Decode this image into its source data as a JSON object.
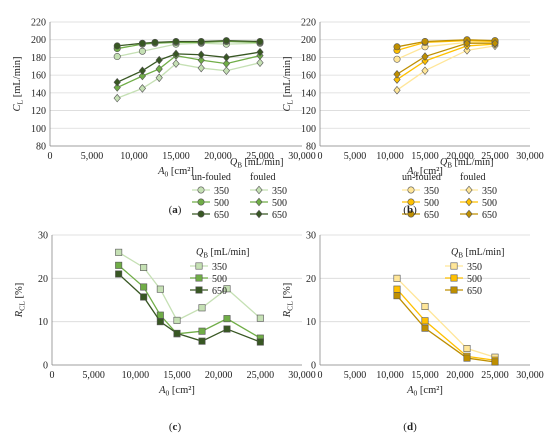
{
  "figure": {
    "background": "#ffffff"
  },
  "chart_data": [
    {
      "panel": "(a)",
      "type": "line",
      "xlabel": "A0 [cm²]",
      "ylabel": "CL [mL/min]",
      "xlim": [
        0,
        30000
      ],
      "ylim": [
        80,
        220
      ],
      "x_ticks": [
        "0",
        "5,000",
        "10,000",
        "15,000",
        "20,000",
        "25,000",
        "30,000"
      ],
      "y_ticks": [
        "80",
        "100",
        "120",
        "140",
        "160",
        "180",
        "200",
        "220"
      ],
      "grid": "horizontal",
      "legend_title": "QB [mL/min]",
      "legend_groups": [
        "un-fouled",
        "fouled"
      ],
      "legend_labels": [
        "350",
        "500",
        "650"
      ],
      "series": [
        {
          "name": "350",
          "group": "un-fouled",
          "marker": "circle",
          "color": "#c5e0b4",
          "x": [
            8000,
            11000,
            15000,
            18000,
            21000,
            25000
          ],
          "y": [
            181,
            187,
            195,
            196,
            195,
            196
          ]
        },
        {
          "name": "500",
          "group": "un-fouled",
          "marker": "circle",
          "color": "#70ad47",
          "x": [
            8000,
            11000,
            12500,
            15000,
            18000,
            21000,
            25000
          ],
          "y": [
            190,
            195,
            196,
            197,
            197,
            198,
            197
          ]
        },
        {
          "name": "650",
          "group": "un-fouled",
          "marker": "circle",
          "color": "#385723",
          "x": [
            8000,
            11000,
            12500,
            15000,
            18000,
            21000,
            25000
          ],
          "y": [
            193,
            196,
            197,
            198,
            198,
            199,
            198
          ]
        },
        {
          "name": "350",
          "group": "fouled",
          "marker": "diamond",
          "color": "#c5e0b4",
          "x": [
            8000,
            11000,
            13000,
            15000,
            18000,
            21000,
            25000
          ],
          "y": [
            134,
            145,
            157,
            173,
            168,
            165,
            174
          ]
        },
        {
          "name": "500",
          "group": "fouled",
          "marker": "diamond",
          "color": "#70ad47",
          "x": [
            8000,
            11000,
            13000,
            15000,
            18000,
            21000,
            25000
          ],
          "y": [
            146,
            159,
            167,
            182,
            177,
            173,
            182
          ]
        },
        {
          "name": "650",
          "group": "fouled",
          "marker": "diamond",
          "color": "#385723",
          "x": [
            8000,
            11000,
            13000,
            15000,
            18000,
            21000,
            25000
          ],
          "y": [
            152,
            165,
            177,
            184,
            183,
            180,
            186
          ]
        }
      ]
    },
    {
      "panel": "(b)",
      "type": "line",
      "xlabel": "A0 [cm²]",
      "ylabel": "CL [mL/min]",
      "xlim": [
        0,
        30000
      ],
      "ylim": [
        80,
        220
      ],
      "x_ticks": [
        "0",
        "5,000",
        "10,000",
        "15,000",
        "20,000",
        "25,000",
        "30,000"
      ],
      "y_ticks": [
        "80",
        "100",
        "120",
        "140",
        "160",
        "180",
        "200",
        "220"
      ],
      "grid": "horizontal",
      "legend_title": "QB [mL/min]",
      "legend_groups": [
        "un-fouled",
        "fouled"
      ],
      "legend_labels": [
        "350",
        "500",
        "650"
      ],
      "series": [
        {
          "name": "350",
          "group": "un-fouled",
          "marker": "circle",
          "color": "#ffe699",
          "x": [
            11000,
            15000,
            21000,
            25000
          ],
          "y": [
            178,
            192,
            197,
            197
          ]
        },
        {
          "name": "500",
          "group": "un-fouled",
          "marker": "circle",
          "color": "#ffc000",
          "x": [
            11000,
            15000,
            21000,
            25000
          ],
          "y": [
            188,
            197,
            199,
            198
          ]
        },
        {
          "name": "650",
          "group": "un-fouled",
          "marker": "circle",
          "color": "#bf8f00",
          "x": [
            11000,
            15000,
            21000,
            25000
          ],
          "y": [
            192,
            198,
            200,
            199
          ]
        },
        {
          "name": "350",
          "group": "fouled",
          "marker": "diamond",
          "color": "#ffe699",
          "x": [
            11000,
            15000,
            21000,
            25000
          ],
          "y": [
            143,
            165,
            188,
            193
          ]
        },
        {
          "name": "500",
          "group": "fouled",
          "marker": "diamond",
          "color": "#ffc000",
          "x": [
            11000,
            15000,
            21000,
            25000
          ],
          "y": [
            155,
            176,
            193,
            195
          ]
        },
        {
          "name": "650",
          "group": "fouled",
          "marker": "diamond",
          "color": "#bf8f00",
          "x": [
            11000,
            15000,
            21000,
            25000
          ],
          "y": [
            161,
            181,
            196,
            196
          ]
        }
      ]
    },
    {
      "panel": "(c)",
      "type": "line",
      "xlabel": "A0 [cm²]",
      "ylabel": "RCL [%]",
      "xlim": [
        0,
        30000
      ],
      "ylim": [
        0,
        30
      ],
      "x_ticks": [
        "0",
        "5,000",
        "10,000",
        "15,000",
        "20,000",
        "25,000",
        "30,000"
      ],
      "y_ticks": [
        "0",
        "10",
        "20",
        "30"
      ],
      "grid": "horizontal",
      "legend_title": "QB [mL/min]",
      "legend_labels": [
        "350",
        "500",
        "650"
      ],
      "series": [
        {
          "name": "350",
          "marker": "square",
          "color": "#c5e0b4",
          "x": [
            8000,
            11000,
            13000,
            15000,
            18000,
            21000,
            25000
          ],
          "y": [
            26,
            22.5,
            17.5,
            10.3,
            13.2,
            17.6,
            10.8
          ]
        },
        {
          "name": "500",
          "marker": "square",
          "color": "#70ad47",
          "x": [
            8000,
            11000,
            13000,
            15000,
            18000,
            21000,
            25000
          ],
          "y": [
            23,
            18,
            11.5,
            7.2,
            7.8,
            10.7,
            6.2
          ]
        },
        {
          "name": "650",
          "marker": "square",
          "color": "#385723",
          "x": [
            8000,
            11000,
            13000,
            15000,
            18000,
            21000,
            25000
          ],
          "y": [
            21,
            15.7,
            10,
            7.3,
            5.5,
            8.3,
            5.3
          ]
        }
      ]
    },
    {
      "panel": "(d)",
      "type": "line",
      "xlabel": "A0 [cm²]",
      "ylabel": "RCL [%]",
      "xlim": [
        0,
        30000
      ],
      "ylim": [
        0,
        30
      ],
      "x_ticks": [
        "0",
        "5,000",
        "10,000",
        "15,000",
        "20,000",
        "25,000",
        "30,000"
      ],
      "y_ticks": [
        "0",
        "10",
        "20",
        "30"
      ],
      "grid": "horizontal",
      "legend_title": "QB [mL/min]",
      "legend_labels": [
        "350",
        "500",
        "650"
      ],
      "series": [
        {
          "name": "350",
          "marker": "square",
          "color": "#ffe699",
          "x": [
            11000,
            15000,
            21000,
            25000
          ],
          "y": [
            20,
            13.5,
            3.8,
            1.8
          ]
        },
        {
          "name": "500",
          "marker": "square",
          "color": "#ffc000",
          "x": [
            11000,
            15000,
            21000,
            25000
          ],
          "y": [
            17.5,
            10.2,
            2,
            1.1
          ]
        },
        {
          "name": "650",
          "marker": "square",
          "color": "#bf8f00",
          "x": [
            11000,
            15000,
            21000,
            25000
          ],
          "y": [
            16,
            8.5,
            1.6,
            0.7
          ]
        }
      ]
    }
  ]
}
